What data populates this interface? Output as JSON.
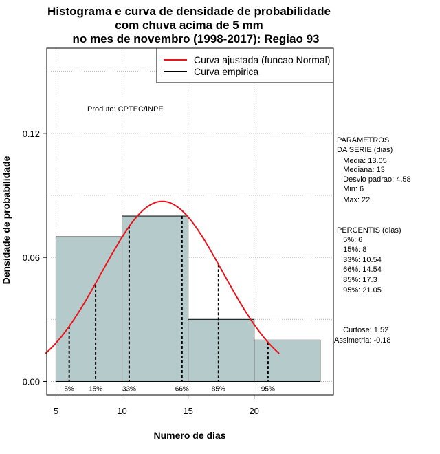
{
  "chart_data": {
    "type": "bar",
    "title_lines": [
      "Histograma e curva de densidade de probabilidade",
      "com chuva acima de 5 mm",
      "no mes de novembro (1998-2017): Regiao 93"
    ],
    "xlabel": "Numero de dias",
    "ylabel": "Densidade de probabilidade",
    "xlim": [
      4.3,
      26.0
    ],
    "ylim": [
      -0.0065,
      0.1612
    ],
    "x_ticks": [
      5,
      10,
      15,
      20
    ],
    "y_ticks": [
      0.0,
      0.06,
      0.12
    ],
    "y_tick_labels": [
      "0.00",
      "0.06",
      "0.12"
    ],
    "grid": true,
    "bins": [
      {
        "start": 5,
        "end": 10,
        "density": 0.07
      },
      {
        "start": 10,
        "end": 15,
        "density": 0.08
      },
      {
        "start": 15,
        "end": 20,
        "density": 0.03
      },
      {
        "start": 20,
        "end": 25,
        "density": 0.02
      }
    ],
    "bar_color": "#b5cbcb",
    "fitted_curve": {
      "name": "Curva ajustada (funcao Normal)",
      "color": "#e8141c",
      "mean": 13.05,
      "sd": 4.58,
      "x_range": [
        4.2,
        21.9
      ]
    },
    "percentiles": [
      {
        "label": "5%",
        "x": 6,
        "density": 0.0265
      },
      {
        "label": "15%",
        "x": 8,
        "density": 0.0468
      },
      {
        "label": "33%",
        "x": 10.54,
        "density": 0.0752
      },
      {
        "label": "66%",
        "x": 14.54,
        "density": 0.08
      },
      {
        "label": "85%",
        "x": 17.3,
        "density": 0.0566
      },
      {
        "label": "95%",
        "x": 21.05,
        "density": 0.0191
      }
    ],
    "legend": {
      "position": "top-right",
      "entries": [
        {
          "label": "Curva ajustada (funcao Normal)",
          "color": "#e8141c"
        },
        {
          "label": "Curva empirica",
          "color": "#000000"
        }
      ]
    },
    "annotation": "Produto: CPTEC/INPE"
  },
  "stats_panel": {
    "parametros_lines": [
      "PARAMETROS",
      "DA SERIE (dias)",
      "   Media: 13.05",
      "   Mediana: 13",
      "   Desvio padrao: 4.58",
      "   Min: 6",
      "   Max: 22"
    ],
    "percentis_lines": [
      "PERCENTIS (dias)",
      "   5%: 6",
      "   15%: 8",
      "   33%: 10.54",
      "   66%: 14.54",
      "   85%: 17.3",
      "   95%: 21.05"
    ],
    "shape_lines": [
      "   Curtose: 1.52",
      "Assimetria: -0.18"
    ]
  }
}
